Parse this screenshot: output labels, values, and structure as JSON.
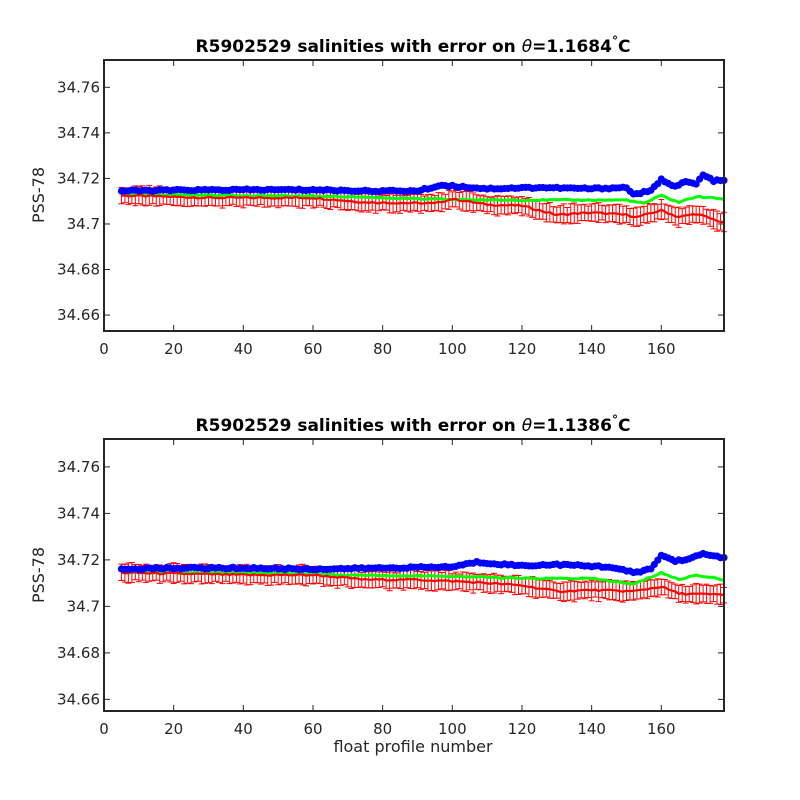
{
  "chart_data": [
    {
      "type": "line",
      "title": {
        "prefix": "R5902529 salinities with error on ",
        "theta": "θ",
        "value": "=1.1684",
        "deg": "°",
        "unit": "C"
      },
      "xlabel": "",
      "ylabel": "PSS-78",
      "xlim": [
        0,
        178
      ],
      "ylim": [
        34.653,
        34.772
      ],
      "xticks": [
        0,
        20,
        40,
        60,
        80,
        100,
        120,
        140,
        160
      ],
      "yticks": [
        34.66,
        34.68,
        34.7,
        34.72,
        34.74,
        34.76
      ],
      "yticklabels": [
        "34.66",
        "34.68",
        "34.7",
        "34.72",
        "34.74",
        "34.76"
      ],
      "x_first": 5,
      "x_last": 178,
      "error_halfwidth": 0.0045,
      "colors": {
        "blue": "#0000ff",
        "green": "#00ff00",
        "red": "#ff0000"
      },
      "series_anchor_points": {
        "blue": [
          [
            5,
            34.7145
          ],
          [
            20,
            34.7148
          ],
          [
            40,
            34.715
          ],
          [
            60,
            34.715
          ],
          [
            75,
            34.7145
          ],
          [
            90,
            34.7145
          ],
          [
            97,
            34.717
          ],
          [
            110,
            34.7155
          ],
          [
            125,
            34.716
          ],
          [
            140,
            34.7155
          ],
          [
            150,
            34.716
          ],
          [
            152,
            34.713
          ],
          [
            157,
            34.7145
          ],
          [
            160,
            34.7195
          ],
          [
            164,
            34.7165
          ],
          [
            167,
            34.7185
          ],
          [
            170,
            34.7175
          ],
          [
            172,
            34.7215
          ],
          [
            175,
            34.719
          ],
          [
            178,
            34.719
          ]
        ],
        "green": [
          [
            5,
            34.713
          ],
          [
            40,
            34.7125
          ],
          [
            70,
            34.712
          ],
          [
            90,
            34.711
          ],
          [
            110,
            34.7105
          ],
          [
            130,
            34.7105
          ],
          [
            150,
            34.7105
          ],
          [
            155,
            34.709
          ],
          [
            160,
            34.7125
          ],
          [
            165,
            34.7095
          ],
          [
            170,
            34.712
          ],
          [
            178,
            34.711
          ]
        ],
        "red": [
          [
            5,
            34.7125
          ],
          [
            30,
            34.7115
          ],
          [
            60,
            34.7115
          ],
          [
            75,
            34.7095
          ],
          [
            95,
            34.709
          ],
          [
            100,
            34.711
          ],
          [
            110,
            34.7085
          ],
          [
            120,
            34.708
          ],
          [
            130,
            34.704
          ],
          [
            140,
            34.705
          ],
          [
            150,
            34.704
          ],
          [
            153,
            34.703
          ],
          [
            160,
            34.706
          ],
          [
            165,
            34.703
          ],
          [
            170,
            34.7045
          ],
          [
            175,
            34.702
          ],
          [
            178,
            34.7005
          ]
        ]
      }
    },
    {
      "type": "line",
      "title": {
        "prefix": "R5902529 salinities with error on ",
        "theta": "θ",
        "value": "=1.1386",
        "deg": "°",
        "unit": "C"
      },
      "xlabel": "float profile number",
      "ylabel": "PSS-78",
      "xlim": [
        0,
        178
      ],
      "ylim": [
        34.655,
        34.772
      ],
      "xticks": [
        0,
        20,
        40,
        60,
        80,
        100,
        120,
        140,
        160
      ],
      "yticks": [
        34.66,
        34.68,
        34.7,
        34.72,
        34.74,
        34.76
      ],
      "yticklabels": [
        "34.66",
        "34.68",
        "34.7",
        "34.72",
        "34.74",
        "34.76"
      ],
      "x_first": 5,
      "x_last": 178,
      "error_halfwidth": 0.0045,
      "colors": {
        "blue": "#0000ff",
        "green": "#00ff00",
        "red": "#ff0000"
      },
      "series_anchor_points": {
        "blue": [
          [
            5,
            34.716
          ],
          [
            20,
            34.7165
          ],
          [
            40,
            34.7165
          ],
          [
            60,
            34.716
          ],
          [
            80,
            34.7165
          ],
          [
            100,
            34.717
          ],
          [
            107,
            34.719
          ],
          [
            120,
            34.7175
          ],
          [
            130,
            34.718
          ],
          [
            145,
            34.717
          ],
          [
            152,
            34.7145
          ],
          [
            157,
            34.716
          ],
          [
            160,
            34.722
          ],
          [
            164,
            34.7195
          ],
          [
            168,
            34.7205
          ],
          [
            172,
            34.7225
          ],
          [
            178,
            34.721
          ]
        ],
        "green": [
          [
            5,
            34.7145
          ],
          [
            40,
            34.7145
          ],
          [
            70,
            34.7135
          ],
          [
            100,
            34.713
          ],
          [
            120,
            34.712
          ],
          [
            140,
            34.712
          ],
          [
            152,
            34.7095
          ],
          [
            160,
            34.7145
          ],
          [
            165,
            34.7115
          ],
          [
            170,
            34.7135
          ],
          [
            178,
            34.7115
          ]
        ],
        "red": [
          [
            5,
            34.7145
          ],
          [
            40,
            34.7135
          ],
          [
            60,
            34.7135
          ],
          [
            75,
            34.7115
          ],
          [
            90,
            34.7115
          ],
          [
            105,
            34.7105
          ],
          [
            120,
            34.709
          ],
          [
            130,
            34.7065
          ],
          [
            140,
            34.707
          ],
          [
            152,
            34.7065
          ],
          [
            160,
            34.7085
          ],
          [
            165,
            34.7055
          ],
          [
            178,
            34.705
          ]
        ]
      }
    }
  ]
}
